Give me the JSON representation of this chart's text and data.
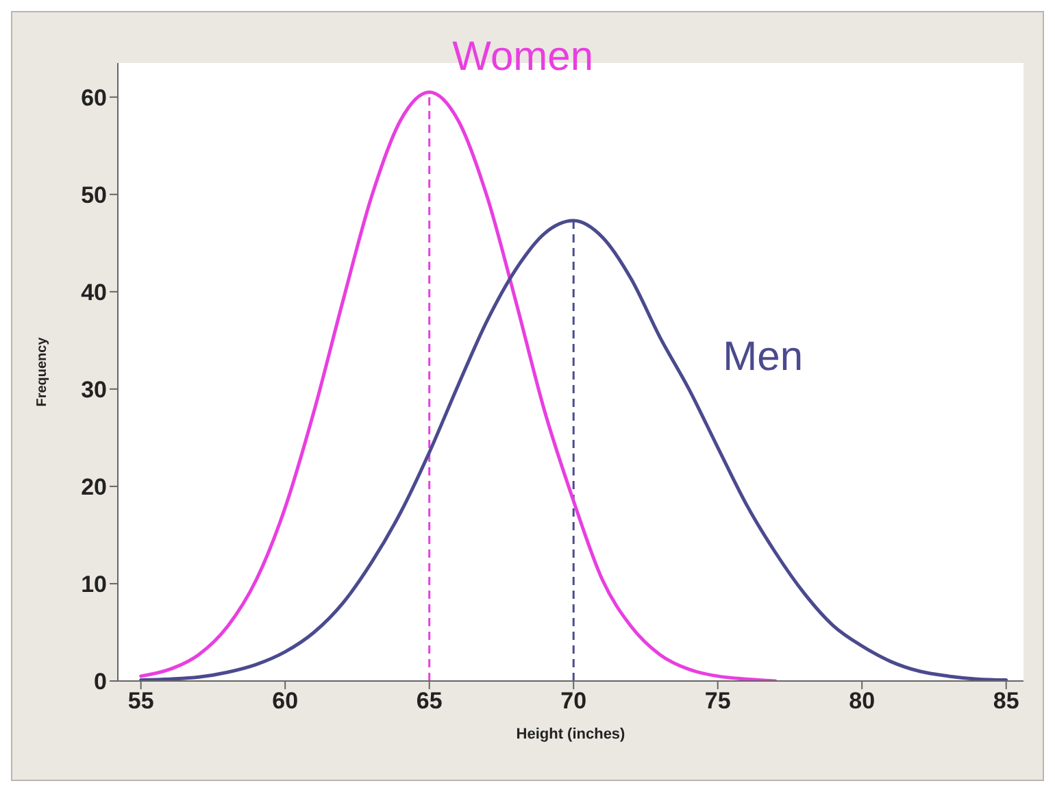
{
  "chart_data": {
    "type": "line",
    "xlabel": "Height (inches)",
    "ylabel": "Frequency",
    "xlim": [
      54.2,
      85.6
    ],
    "xticks": [
      55,
      60,
      65,
      70,
      75,
      80,
      85
    ],
    "ylim": [
      0,
      63.5
    ],
    "yticks": [
      0,
      10,
      20,
      30,
      40,
      50,
      60
    ],
    "grid": false,
    "legend": false,
    "marker": "none",
    "line_style": "solid",
    "series": [
      {
        "name": "Women",
        "color": "#e83fe0",
        "x": [
          55,
          56,
          57,
          58,
          59,
          60,
          61,
          62,
          63,
          64,
          65,
          66,
          67,
          68,
          69,
          70,
          71,
          72,
          73,
          74,
          75,
          76,
          77
        ],
        "values": [
          0.5,
          1.2,
          2.7,
          5.6,
          10.4,
          17.8,
          27.7,
          39,
          49.8,
          57.6,
          60.5,
          57.6,
          49.8,
          39,
          27.7,
          18.5,
          10.4,
          5.6,
          2.7,
          1.2,
          0.5,
          0.2,
          0
        ]
      },
      {
        "name": "Men",
        "color": "#4b4a8e",
        "x": [
          55,
          56,
          57,
          58,
          59,
          60,
          61,
          62,
          63,
          64,
          65,
          66,
          67,
          68,
          69,
          70,
          71,
          72,
          73,
          74,
          75,
          76,
          77,
          78,
          79,
          80,
          81,
          82,
          83,
          84,
          85
        ],
        "values": [
          0.1,
          0.2,
          0.4,
          0.9,
          1.7,
          3,
          5,
          8,
          12.2,
          17.3,
          23.5,
          30.4,
          37,
          42.3,
          46,
          47.3,
          45.6,
          41.3,
          35.3,
          30,
          24,
          18.1,
          13.2,
          9,
          5.7,
          3.6,
          2,
          1,
          0.5,
          0.2,
          0.1
        ]
      }
    ],
    "ref_lines": [
      {
        "axis": "x",
        "value": 65,
        "color": "#e83fe0",
        "line_style": "dashed"
      },
      {
        "axis": "x",
        "value": 70,
        "color": "#4b4a8e",
        "line_style": "dashed"
      }
    ]
  }
}
